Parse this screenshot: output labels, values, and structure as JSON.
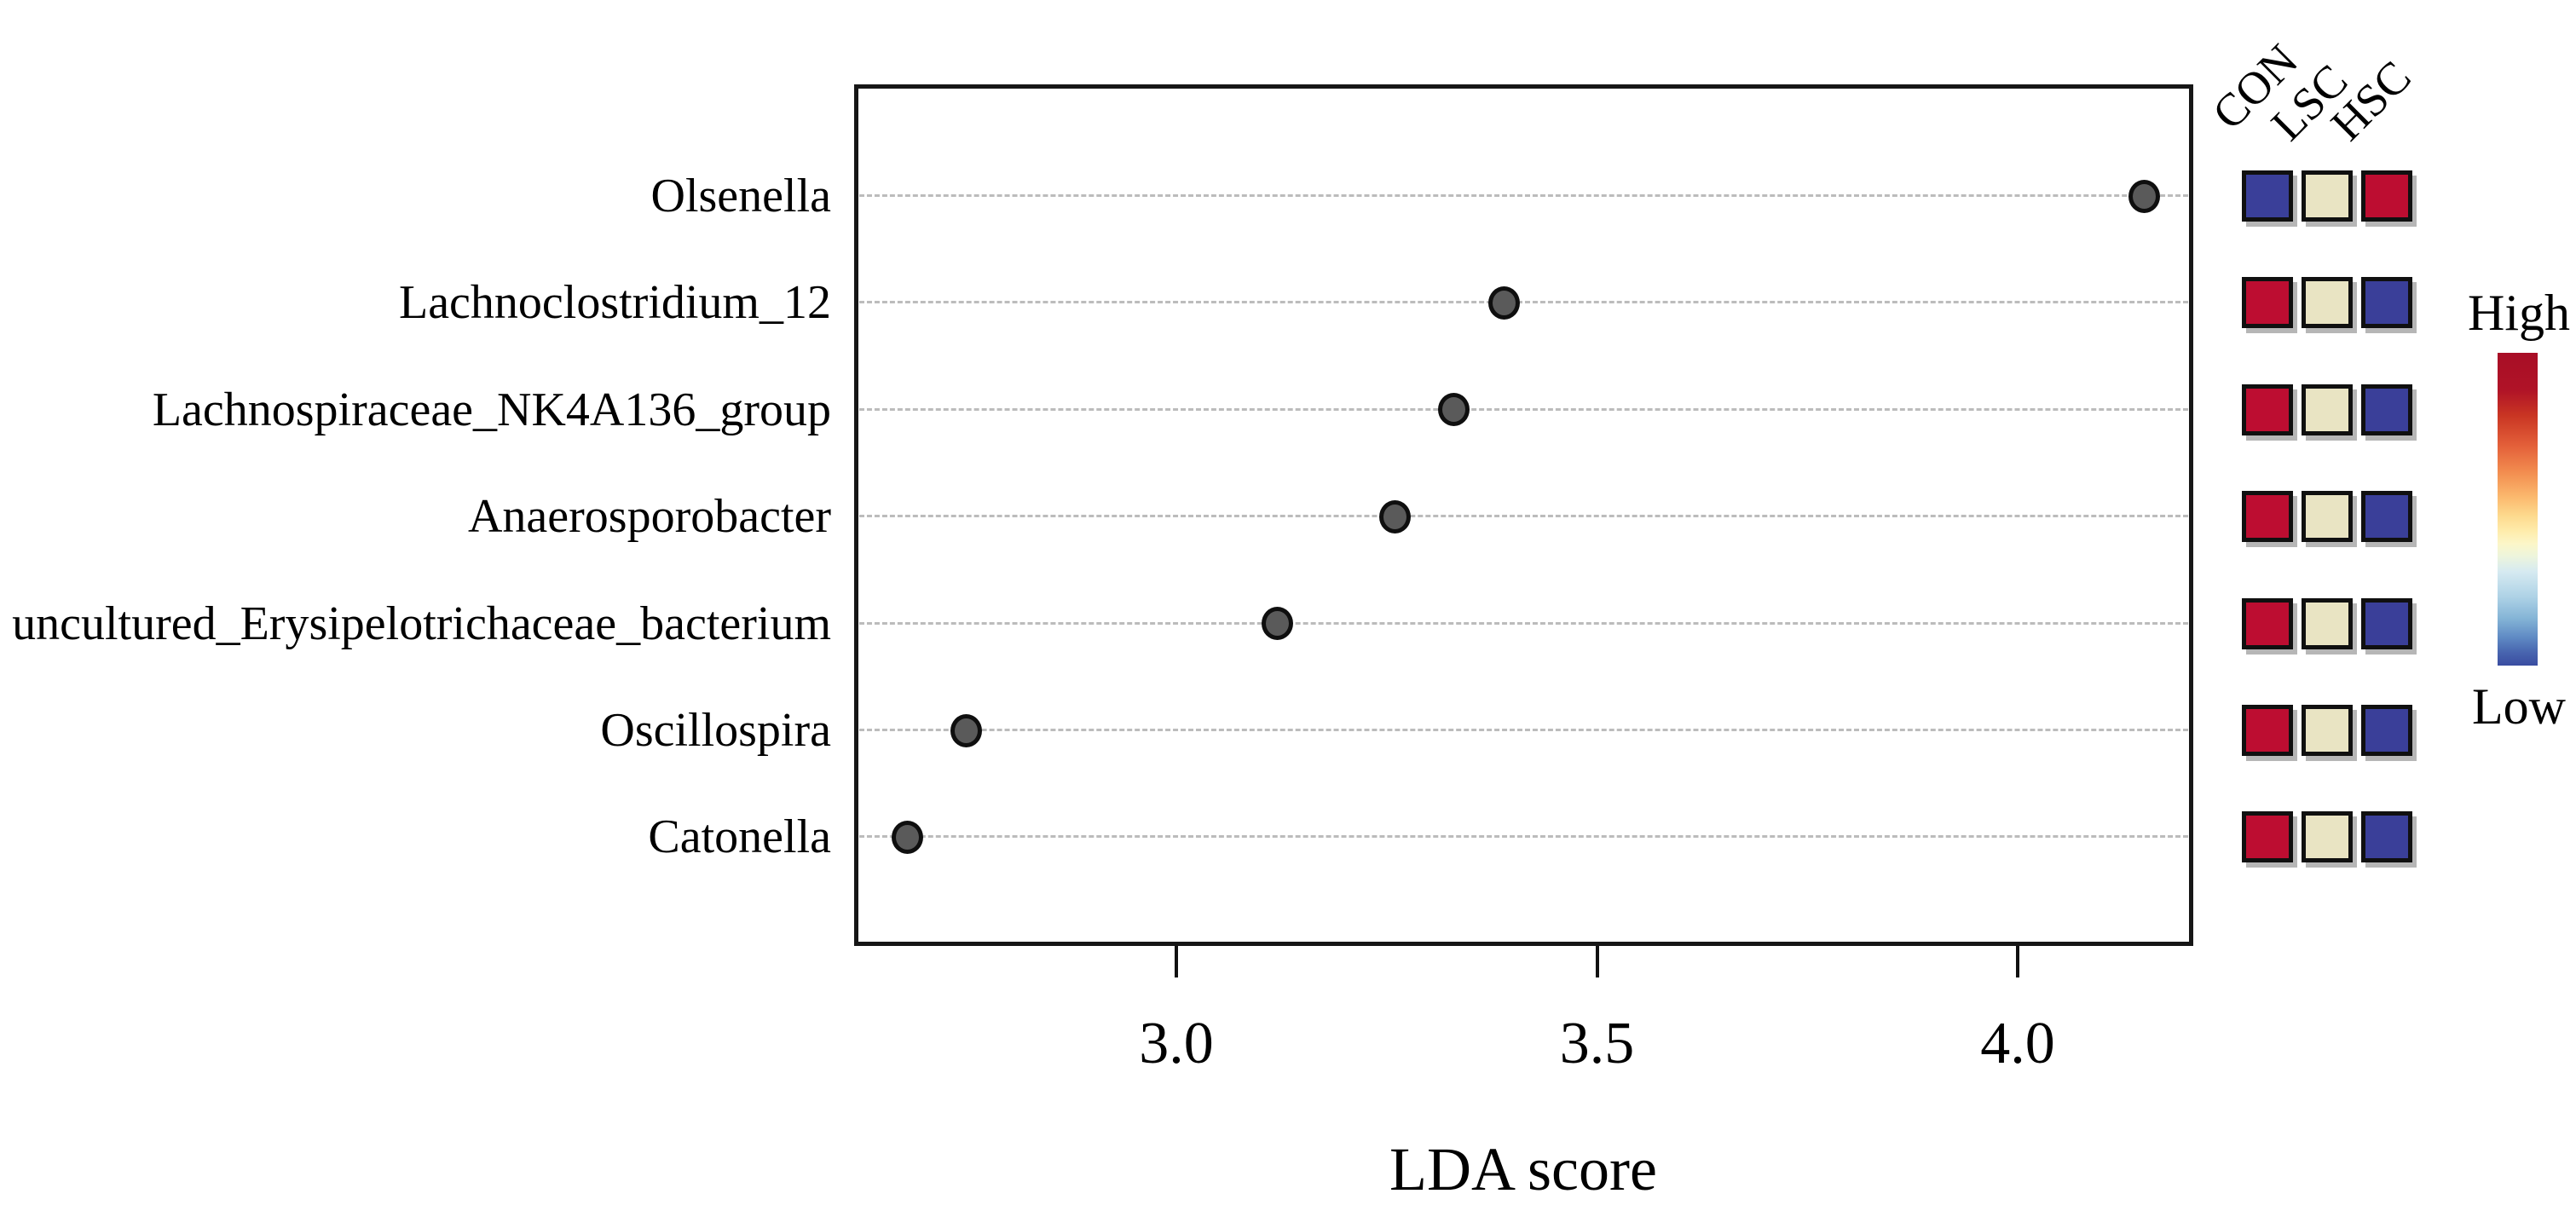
{
  "chart_data": {
    "type": "scatter",
    "title": "",
    "xlabel": "LDA score",
    "x_tick_labels": [
      "3.0",
      "3.5",
      "4.0"
    ],
    "x_tick_values": [
      3.0,
      3.5,
      4.0
    ],
    "xlim": [
      2.62,
      4.21
    ],
    "grid": true,
    "dot_color": "#5a5a5a",
    "categories": [
      "Olsenella",
      "Lachnoclostridium_12",
      "Lachnospiraceae_NK4A136_group",
      "Anaerosporobacter",
      "uncultured_Erysipelotrichaceae_bacterium",
      "Oscillospira",
      "Catonella"
    ],
    "values": [
      4.15,
      3.39,
      3.33,
      3.26,
      3.12,
      2.75,
      2.68
    ],
    "rows": [
      {
        "taxon": "Olsenella",
        "lda_score": 4.15,
        "heatmap": [
          "low",
          "mid",
          "high"
        ]
      },
      {
        "taxon": "Lachnoclostridium_12",
        "lda_score": 3.39,
        "heatmap": [
          "high",
          "mid",
          "low"
        ]
      },
      {
        "taxon": "Lachnospiraceae_NK4A136_group",
        "lda_score": 3.33,
        "heatmap": [
          "high",
          "mid",
          "low"
        ]
      },
      {
        "taxon": "Anaerosporobacter",
        "lda_score": 3.26,
        "heatmap": [
          "high",
          "mid",
          "low"
        ]
      },
      {
        "taxon": "uncultured_Erysipelotrichaceae_bacterium",
        "lda_score": 3.12,
        "heatmap": [
          "high",
          "mid",
          "low"
        ]
      },
      {
        "taxon": "Oscillospira",
        "lda_score": 2.75,
        "heatmap": [
          "high",
          "mid",
          "low"
        ]
      },
      {
        "taxon": "Catonella",
        "lda_score": 2.68,
        "heatmap": [
          "high",
          "mid",
          "low"
        ]
      }
    ],
    "heatmap_columns": [
      "CON",
      "LSC",
      "HSC"
    ],
    "heatmap_levels": {
      "high": "#bd0d31",
      "mid": "#e9e4c3",
      "low": "#3a3f99"
    },
    "colorbar": {
      "high_label": "High",
      "low_label": "Low",
      "top_color": "#a80e26",
      "bottom_color": "#3a4da1"
    }
  }
}
